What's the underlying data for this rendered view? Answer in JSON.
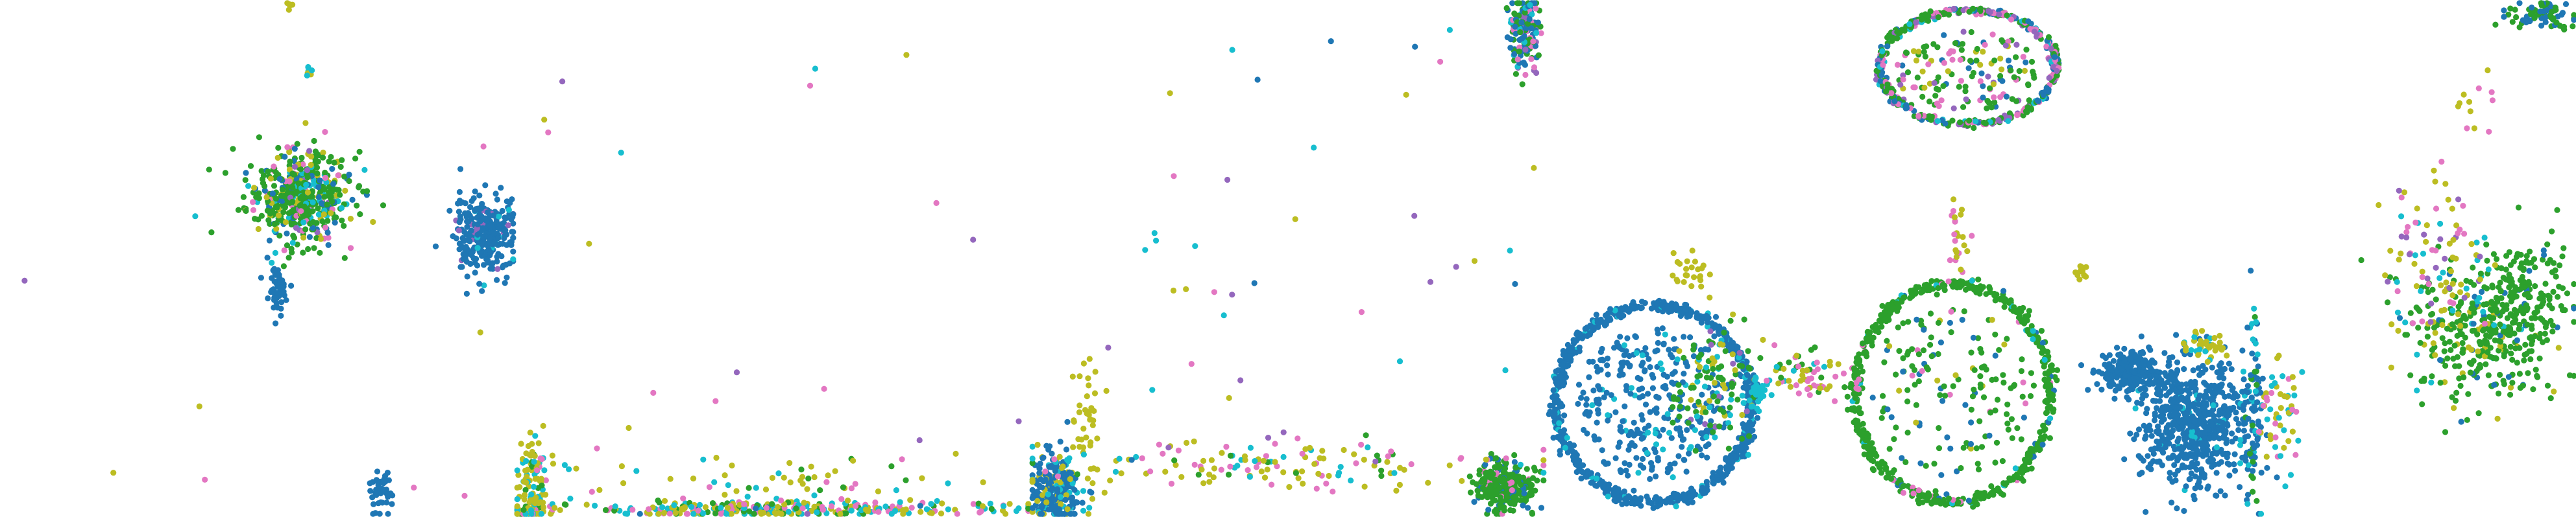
{
  "figure": {
    "panel_count": 5
  },
  "palette": {
    "blue": "#1f77b4",
    "green": "#2ca02c",
    "olive": "#bcbd22",
    "cyan": "#17becf",
    "pink": "#e377c2",
    "purple": "#9467bd"
  },
  "chart_data": [
    {
      "type": "scatter",
      "title": "",
      "xlabel": "",
      "ylabel": "",
      "xlim": [
        0,
        1
      ],
      "ylim": [
        0,
        1
      ],
      "grid": false,
      "axes_visible": false,
      "clusters": [
        {
          "cx": 0.58,
          "cy": 0.62,
          "rx": 0.1,
          "ry": 0.09,
          "n": 520,
          "shape": "blob",
          "mix": {
            "green": 0.55,
            "blue": 0.12,
            "olive": 0.12,
            "cyan": 0.1,
            "pink": 0.08,
            "purple": 0.03
          }
        },
        {
          "cx": 0.94,
          "cy": 0.55,
          "rx": 0.06,
          "ry": 0.07,
          "n": 300,
          "shape": "blob",
          "mix": {
            "blue": 0.93,
            "purple": 0.04,
            "cyan": 0.03
          }
        },
        {
          "cx": 0.54,
          "cy": 0.44,
          "rx": 0.02,
          "ry": 0.05,
          "n": 50,
          "shape": "blob",
          "mix": {
            "blue": 1
          }
        },
        {
          "cx": 0.74,
          "cy": 0.05,
          "rx": 0.025,
          "ry": 0.04,
          "n": 50,
          "shape": "blob",
          "mix": {
            "blue": 1
          }
        },
        {
          "cx": 0.6,
          "cy": 0.86,
          "rx": 0.008,
          "ry": 0.012,
          "n": 8,
          "shape": "blob",
          "mix": {
            "olive": 0.5,
            "cyan": 0.5
          }
        },
        {
          "cx": 0.56,
          "cy": 0.99,
          "rx": 0.008,
          "ry": 0.008,
          "n": 5,
          "shape": "blob",
          "mix": {
            "olive": 1
          }
        },
        {
          "cx": 0.5,
          "cy": 0.5,
          "rx": 0.5,
          "ry": 0.5,
          "n": 8,
          "shape": "uniform",
          "mix": {
            "olive": 0.4,
            "purple": 0.3,
            "pink": 0.3
          }
        }
      ]
    },
    {
      "type": "scatter",
      "title": "",
      "xlabel": "",
      "ylabel": "",
      "xlim": [
        0,
        1
      ],
      "ylim": [
        0,
        1
      ],
      "grid": false,
      "axes_visible": false,
      "clusters": [
        {
          "cx": 0.03,
          "cy": 0.05,
          "rx": 0.03,
          "ry": 0.11,
          "n": 120,
          "shape": "blob",
          "mix": {
            "olive": 0.6,
            "cyan": 0.2,
            "pink": 0.1,
            "green": 0.1
          }
        },
        {
          "cx": 0.5,
          "cy": 0.015,
          "rx": 0.48,
          "ry": 0.015,
          "n": 320,
          "shape": "blob",
          "mix": {
            "olive": 0.3,
            "cyan": 0.3,
            "pink": 0.2,
            "green": 0.15,
            "blue": 0.05
          }
        },
        {
          "cx": 0.5,
          "cy": 0.07,
          "rx": 0.45,
          "ry": 0.05,
          "n": 70,
          "shape": "blob",
          "mix": {
            "olive": 0.5,
            "pink": 0.2,
            "cyan": 0.2,
            "green": 0.1
          }
        },
        {
          "cx": 0.5,
          "cy": 0.45,
          "rx": 0.5,
          "ry": 0.5,
          "n": 18,
          "shape": "uniform",
          "mix": {
            "olive": 0.3,
            "purple": 0.25,
            "cyan": 0.2,
            "pink": 0.25
          }
        }
      ]
    },
    {
      "type": "scatter",
      "title": "",
      "xlabel": "",
      "ylabel": "",
      "xlim": [
        0,
        1
      ],
      "ylim": [
        0,
        1
      ],
      "grid": false,
      "axes_visible": false,
      "clusters": [
        {
          "cx": 0.05,
          "cy": 0.05,
          "rx": 0.05,
          "ry": 0.07,
          "n": 260,
          "shape": "blob",
          "mix": {
            "blue": 0.75,
            "cyan": 0.1,
            "olive": 0.15
          }
        },
        {
          "cx": 0.11,
          "cy": 0.2,
          "rx": 0.03,
          "ry": 0.12,
          "n": 40,
          "shape": "blob",
          "mix": {
            "olive": 1
          }
        },
        {
          "cx": 0.92,
          "cy": 0.06,
          "rx": 0.06,
          "ry": 0.05,
          "n": 280,
          "shape": "blob",
          "mix": {
            "green": 0.8,
            "blue": 0.15,
            "pink": 0.05
          }
        },
        {
          "cx": 0.96,
          "cy": 0.94,
          "rx": 0.03,
          "ry": 0.07,
          "n": 160,
          "shape": "blob",
          "mix": {
            "blue": 0.35,
            "green": 0.3,
            "pink": 0.2,
            "purple": 0.1,
            "cyan": 0.05
          }
        },
        {
          "cx": 0.5,
          "cy": 0.1,
          "rx": 0.45,
          "ry": 0.05,
          "n": 140,
          "shape": "blob",
          "mix": {
            "olive": 0.4,
            "pink": 0.25,
            "cyan": 0.2,
            "green": 0.15
          }
        },
        {
          "cx": 0.55,
          "cy": 0.45,
          "rx": 0.45,
          "ry": 0.5,
          "n": 45,
          "shape": "uniform",
          "mix": {
            "olive": 0.35,
            "cyan": 0.25,
            "purple": 0.2,
            "pink": 0.1,
            "blue": 0.1
          }
        }
      ]
    },
    {
      "type": "scatter",
      "title": "",
      "xlabel": "",
      "ylabel": "",
      "xlim": [
        0,
        1
      ],
      "ylim": [
        0,
        1
      ],
      "grid": false,
      "axes_visible": false,
      "clusters": [
        {
          "cx": 0.21,
          "cy": 0.22,
          "rx": 0.19,
          "ry": 0.19,
          "n": 760,
          "shape": "ring",
          "mix": {
            "blue": 0.95,
            "cyan": 0.05
          }
        },
        {
          "cx": 0.21,
          "cy": 0.22,
          "rx": 0.15,
          "ry": 0.15,
          "n": 300,
          "shape": "fill",
          "mix": {
            "blue": 0.9,
            "cyan": 0.1
          }
        },
        {
          "cx": 0.33,
          "cy": 0.25,
          "rx": 0.08,
          "ry": 0.12,
          "n": 120,
          "shape": "blob",
          "mix": {
            "green": 0.55,
            "olive": 0.25,
            "cyan": 0.12,
            "purple": 0.08
          }
        },
        {
          "cx": 0.41,
          "cy": 0.24,
          "rx": 0.02,
          "ry": 0.03,
          "n": 30,
          "shape": "blob",
          "mix": {
            "cyan": 1
          }
        },
        {
          "cx": 0.79,
          "cy": 0.24,
          "rx": 0.19,
          "ry": 0.21,
          "n": 560,
          "shape": "ring",
          "mix": {
            "green": 0.85,
            "blue": 0.05,
            "pink": 0.05,
            "cyan": 0.05
          }
        },
        {
          "cx": 0.79,
          "cy": 0.24,
          "rx": 0.16,
          "ry": 0.17,
          "n": 160,
          "shape": "fill",
          "mix": {
            "green": 0.7,
            "blue": 0.2,
            "olive": 0.05,
            "pink": 0.05
          }
        },
        {
          "cx": 0.82,
          "cy": 0.87,
          "rx": 0.17,
          "ry": 0.11,
          "n": 460,
          "shape": "ring",
          "mix": {
            "green": 0.4,
            "pink": 0.2,
            "blue": 0.15,
            "purple": 0.15,
            "cyan": 0.1
          }
        },
        {
          "cx": 0.82,
          "cy": 0.86,
          "rx": 0.14,
          "ry": 0.08,
          "n": 140,
          "shape": "fill",
          "mix": {
            "green": 0.4,
            "pink": 0.2,
            "blue": 0.2,
            "purple": 0.1,
            "olive": 0.1
          }
        },
        {
          "cx": 0.5,
          "cy": 0.28,
          "rx": 0.06,
          "ry": 0.05,
          "n": 60,
          "shape": "blob",
          "mix": {
            "olive": 0.4,
            "pink": 0.3,
            "green": 0.2,
            "cyan": 0.1
          }
        },
        {
          "cx": 0.8,
          "cy": 0.55,
          "rx": 0.02,
          "ry": 0.14,
          "n": 25,
          "shape": "blob",
          "mix": {
            "pink": 0.5,
            "olive": 0.5
          }
        },
        {
          "cx": 0.28,
          "cy": 0.47,
          "rx": 0.05,
          "ry": 0.04,
          "n": 25,
          "shape": "blob",
          "mix": {
            "olive": 1
          }
        }
      ]
    },
    {
      "type": "scatter",
      "title": "",
      "xlabel": "",
      "ylabel": "",
      "xlim": [
        0,
        1
      ],
      "ylim": [
        0,
        1
      ],
      "grid": false,
      "axes_visible": false,
      "clusters": [
        {
          "cx": 0.26,
          "cy": 0.18,
          "rx": 0.1,
          "ry": 0.12,
          "n": 620,
          "shape": "blob",
          "mix": {
            "blue": 0.97,
            "cyan": 0.03
          }
        },
        {
          "cx": 0.14,
          "cy": 0.28,
          "rx": 0.08,
          "ry": 0.04,
          "n": 220,
          "shape": "blob",
          "mix": {
            "blue": 1
          }
        },
        {
          "cx": 0.37,
          "cy": 0.23,
          "rx": 0.02,
          "ry": 0.2,
          "n": 90,
          "shape": "blob",
          "mix": {
            "blue": 0.6,
            "cyan": 0.25,
            "green": 0.15
          }
        },
        {
          "cx": 0.42,
          "cy": 0.2,
          "rx": 0.04,
          "ry": 0.12,
          "n": 55,
          "shape": "blob",
          "mix": {
            "olive": 0.45,
            "pink": 0.3,
            "cyan": 0.25
          }
        },
        {
          "cx": 0.28,
          "cy": 0.33,
          "rx": 0.04,
          "ry": 0.03,
          "n": 45,
          "shape": "blob",
          "mix": {
            "olive": 0.8,
            "cyan": 0.2
          }
        },
        {
          "cx": 0.82,
          "cy": 0.36,
          "rx": 0.14,
          "ry": 0.13,
          "n": 340,
          "shape": "blob",
          "mix": {
            "green": 0.75,
            "olive": 0.15,
            "blue": 0.05,
            "cyan": 0.05
          }
        },
        {
          "cx": 0.9,
          "cy": 0.43,
          "rx": 0.08,
          "ry": 0.12,
          "n": 150,
          "shape": "blob",
          "mix": {
            "green": 0.9,
            "blue": 0.1
          }
        },
        {
          "cx": 0.72,
          "cy": 0.5,
          "rx": 0.12,
          "ry": 0.15,
          "n": 90,
          "shape": "blob",
          "mix": {
            "olive": 0.45,
            "pink": 0.25,
            "cyan": 0.15,
            "purple": 0.15
          }
        },
        {
          "cx": 0.81,
          "cy": 0.79,
          "rx": 0.03,
          "ry": 0.08,
          "n": 12,
          "shape": "blob",
          "mix": {
            "pink": 0.5,
            "olive": 0.5
          }
        },
        {
          "cx": 0.04,
          "cy": 0.47,
          "rx": 0.015,
          "ry": 0.025,
          "n": 12,
          "shape": "blob",
          "mix": {
            "olive": 1
          }
        },
        {
          "cx": 0.93,
          "cy": 0.97,
          "rx": 0.07,
          "ry": 0.03,
          "n": 70,
          "shape": "blob",
          "mix": {
            "blue": 0.4,
            "green": 0.6
          }
        }
      ]
    }
  ]
}
